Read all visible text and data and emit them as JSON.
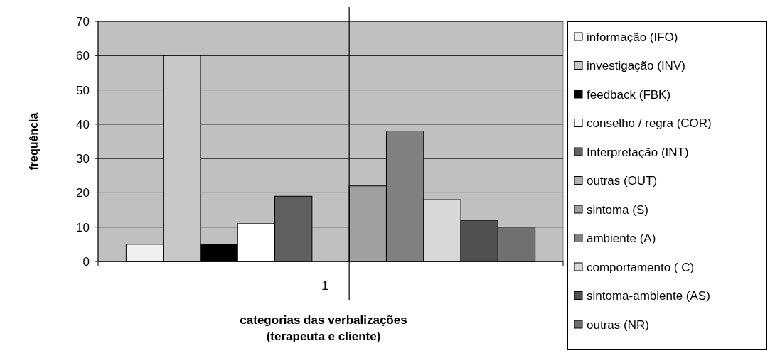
{
  "chart_data": {
    "type": "bar",
    "xlabel": "categorias das verbalizações\n(terapeuta e cliente)",
    "ylabel": "frequência",
    "categories": [
      "1"
    ],
    "series": [
      {
        "name": "informação (IFO)",
        "color": "#f0f0f0",
        "values": [
          5
        ]
      },
      {
        "name": "investigação (INV)",
        "color": "#c8c8c8",
        "values": [
          60
        ]
      },
      {
        "name": "feedback (FBK)",
        "color": "#000000",
        "values": [
          5
        ]
      },
      {
        "name": "conselho / regra (COR)",
        "color": "#ffffff",
        "values": [
          11
        ]
      },
      {
        "name": "Interpretação (INT)",
        "color": "#606060",
        "values": [
          19
        ]
      },
      {
        "name": "outras (OUT)",
        "color": "#b0b0b0",
        "values": [
          0
        ]
      },
      {
        "name": "sintoma (S)",
        "color": "#a0a0a0",
        "values": [
          22
        ]
      },
      {
        "name": "ambiente (A)",
        "color": "#808080",
        "values": [
          38
        ]
      },
      {
        "name": "comportamento ( C)",
        "color": "#d8d8d8",
        "values": [
          18
        ]
      },
      {
        "name": "sintoma-ambiente (AS)",
        "color": "#505050",
        "values": [
          12
        ]
      },
      {
        "name": "outras (NR)",
        "color": "#707070",
        "values": [
          10
        ]
      }
    ],
    "ylim": [
      0,
      70
    ],
    "yticks": [
      0,
      10,
      20,
      30,
      40,
      50,
      60,
      70
    ],
    "grid": "y",
    "legend": "right"
  }
}
